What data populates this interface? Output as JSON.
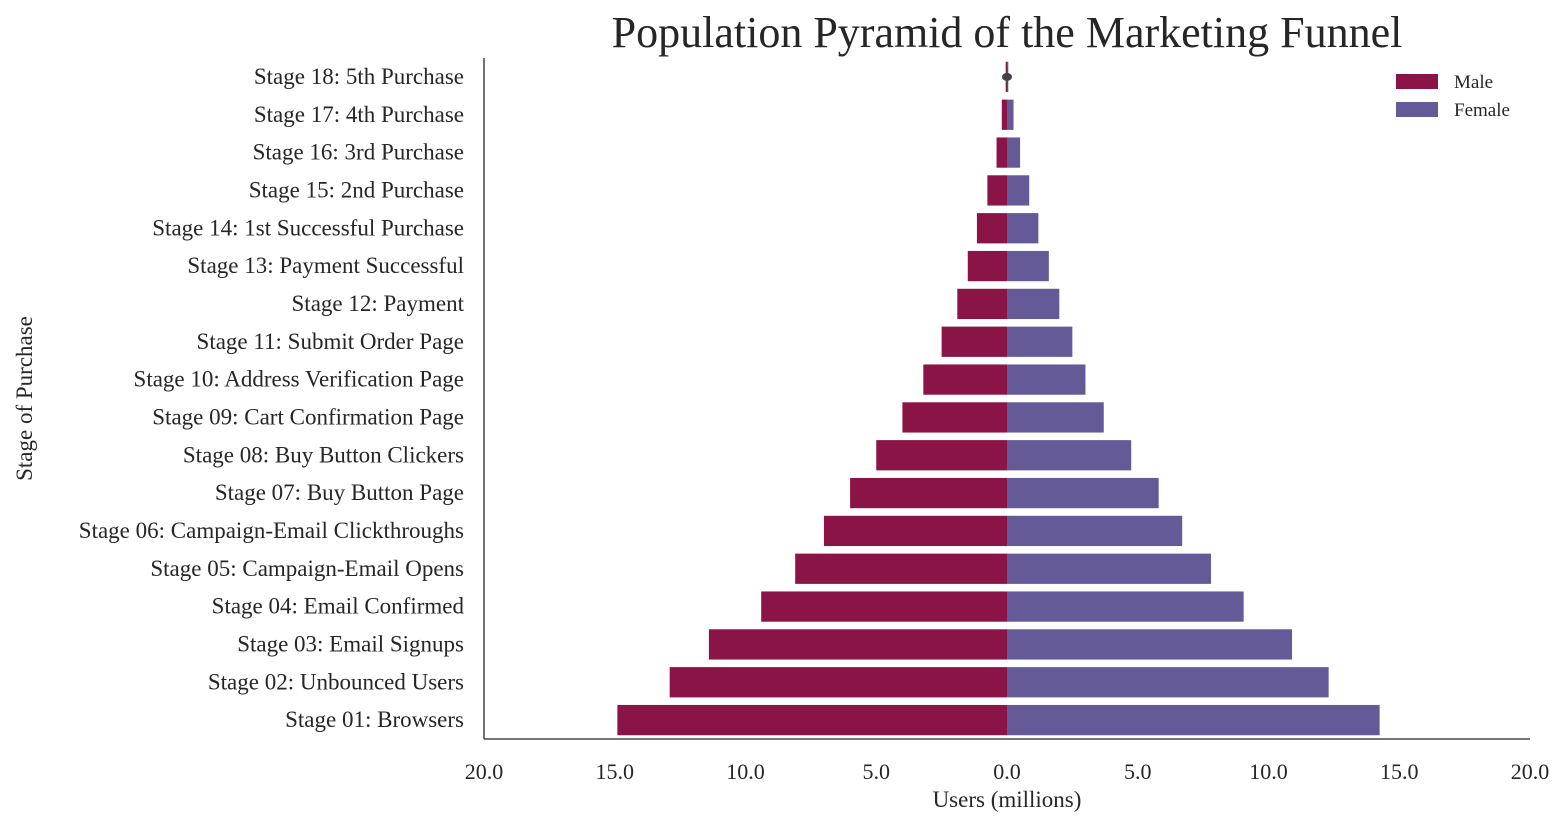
{
  "chart_data": {
    "type": "bar",
    "orientation": "horizontal",
    "title": "Population Pyramid of the Marketing Funnel",
    "xlabel": "Users (millions)",
    "ylabel": "Stage of Purchase",
    "xlim": [
      -20,
      20
    ],
    "xticks": [
      -20,
      -15,
      -10,
      -5,
      0,
      5,
      10,
      15,
      20
    ],
    "xtick_labels": [
      "20.0",
      "15.0",
      "10.0",
      "5.0",
      "0.0",
      "5.0",
      "10.0",
      "15.0",
      "20.0"
    ],
    "grid": false,
    "legend_position": "top-right",
    "categories": [
      "Stage 18: 5th Purchase",
      "Stage 17: 4th Purchase",
      "Stage 16: 3rd Purchase",
      "Stage 15: 2nd Purchase",
      "Stage 14: 1st Successful Purchase",
      "Stage 13: Payment Successful",
      "Stage 12: Payment",
      "Stage 11: Submit Order Page",
      "Stage 10: Address Verification Page",
      "Stage 09: Cart Confirmation Page",
      "Stage 08: Buy Button Clickers",
      "Stage 07: Buy Button Page",
      "Stage 06: Campaign-Email Clickthroughs",
      "Stage 05: Campaign-Email Opens",
      "Stage 04: Email Confirmed",
      "Stage 03: Email Signups",
      "Stage 02: Unbounced Users",
      "Stage 01: Browsers"
    ],
    "series": [
      {
        "name": "Male",
        "color": "#8b1446",
        "values": [
          -0.05,
          -0.2,
          -0.4,
          -0.75,
          -1.15,
          -1.5,
          -1.9,
          -2.5,
          -3.2,
          -4.0,
          -5.0,
          -6.0,
          -7.0,
          -8.1,
          -9.4,
          -11.4,
          -12.9,
          -14.9
        ]
      },
      {
        "name": "Female",
        "color": "#645a98",
        "values": [
          0.05,
          0.25,
          0.5,
          0.85,
          1.2,
          1.6,
          2.0,
          2.5,
          3.0,
          3.7,
          4.75,
          5.8,
          6.7,
          7.8,
          9.05,
          10.9,
          12.3,
          14.25
        ]
      }
    ]
  }
}
